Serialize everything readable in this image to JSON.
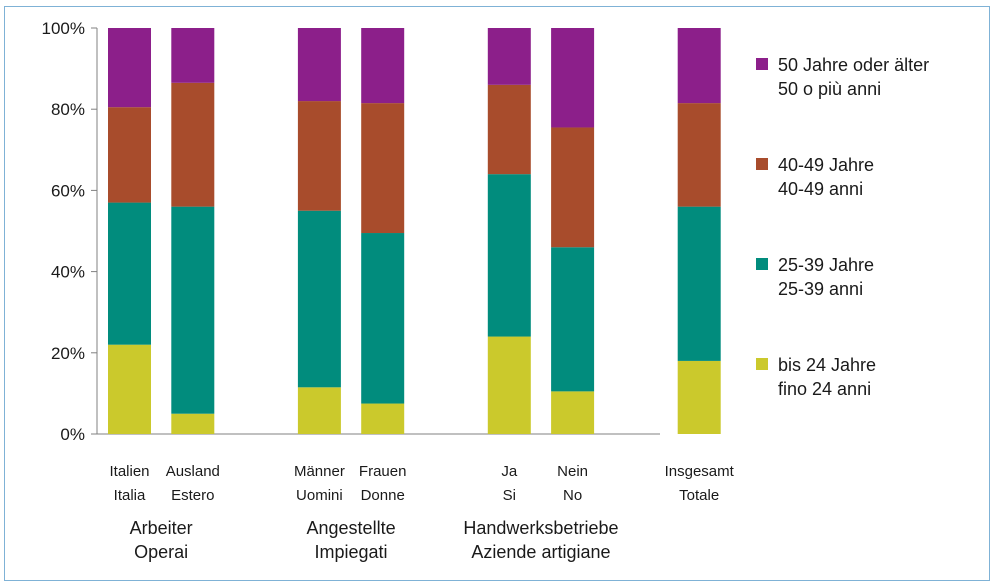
{
  "chart_data": {
    "type": "bar",
    "stacked": true,
    "percent": true,
    "ylim": [
      0,
      100
    ],
    "yticks": [
      "0%",
      "20%",
      "40%",
      "60%",
      "80%",
      "100%"
    ],
    "yticks_values": [
      0,
      20,
      40,
      60,
      80,
      100
    ],
    "grid": false,
    "legend_position": "right",
    "categories": [
      {
        "line1": "Italien",
        "line2": "Italia",
        "slot": 0
      },
      {
        "line1": "Ausland",
        "line2": "Estero",
        "slot": 1
      },
      {
        "line1": "Männer",
        "line2": "Uomini",
        "slot": 3
      },
      {
        "line1": "Frauen",
        "line2": "Donne",
        "slot": 4
      },
      {
        "line1": "Ja",
        "line2": "Si",
        "slot": 6
      },
      {
        "line1": "Nein",
        "line2": "No",
        "slot": 7
      },
      {
        "line1": "Insgesamt",
        "line2": "Totale",
        "slot": 9
      }
    ],
    "groups": [
      {
        "line1": "Arbeiter",
        "line2": "Operai",
        "center_slot": 0.5
      },
      {
        "line1": "Angestellte",
        "line2": "Impiegati",
        "center_slot": 3.5
      },
      {
        "line1": "Handwerksbetriebe",
        "line2": "Aziende artigiane",
        "center_slot": 6.5
      }
    ],
    "series": [
      {
        "name_line1": "bis 24 Jahre",
        "name_line2": "fino 24 anni",
        "color": "#cbc92c",
        "values": [
          22,
          5,
          11.5,
          7.5,
          24,
          10.5,
          18
        ]
      },
      {
        "name_line1": "25-39 Jahre",
        "name_line2": "25-39 anni",
        "color": "#018c7d",
        "values": [
          35,
          51,
          43.5,
          42,
          40,
          35.5,
          38
        ]
      },
      {
        "name_line1": "40-49 Jahre",
        "name_line2": "40-49 anni",
        "color": "#a84c2c",
        "values": [
          23.5,
          30.5,
          27,
          32,
          22,
          29.5,
          25.5
        ]
      },
      {
        "name_line1": "50 Jahre oder älter",
        "name_line2": "50 o più anni",
        "color": "#8c1f8a",
        "values": [
          19.5,
          13.5,
          18,
          18.5,
          14,
          24.5,
          18.5
        ]
      }
    ]
  }
}
